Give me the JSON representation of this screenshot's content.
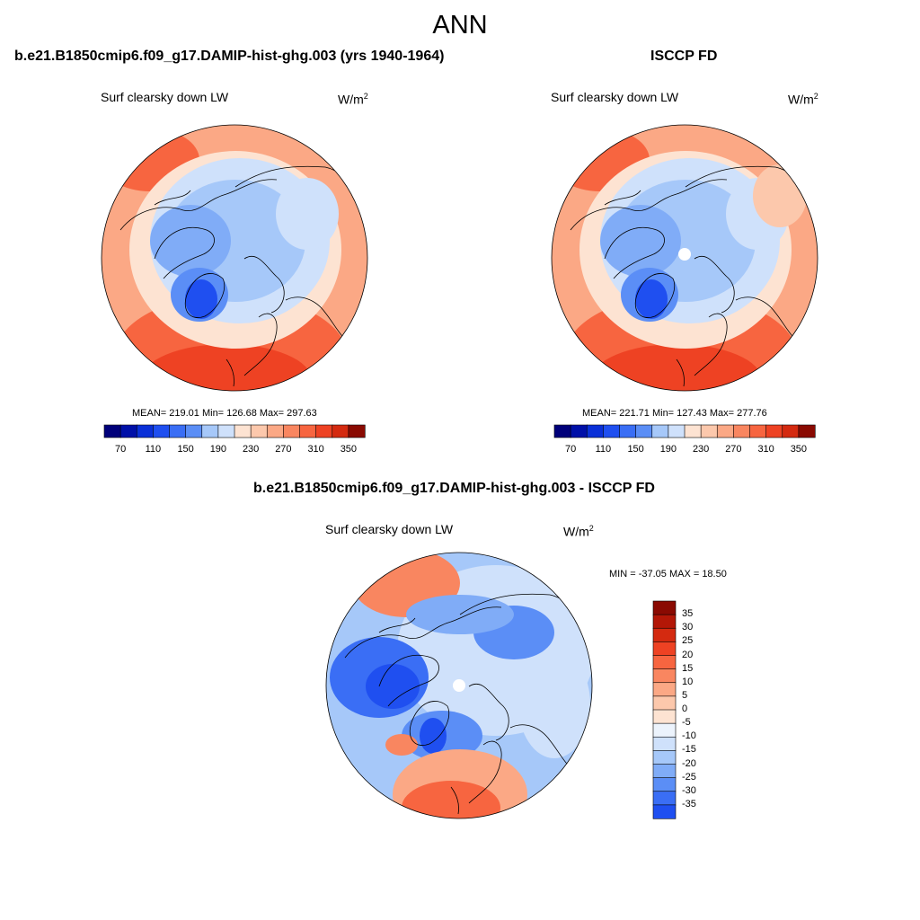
{
  "title": "ANN",
  "colors": {
    "blue_scale": [
      "#00007a",
      "#0010a8",
      "#0a30d8",
      "#1f4ff0",
      "#3a6ef5",
      "#5b8ef6",
      "#80acf7",
      "#a6c8f9",
      "#cfe1fb"
    ],
    "white": "#ecf3fc",
    "red_scale": [
      "#fde3d2",
      "#fcc8ac",
      "#fba885",
      "#f98660",
      "#f76540",
      "#ee4223",
      "#d42a10",
      "#b31707",
      "#8a0a02"
    ],
    "ocean": "#f2a98a",
    "land_outline": "#000000"
  },
  "panels": [
    {
      "title": "b.e21.B1850cmip6.f09_g17.DAMIP-hist-ghg.003 (yrs 1940-1964)",
      "variable": "Surf clearsky down LW",
      "units_base": "W/m",
      "units_exp": "2",
      "stats": "MEAN= 219.01  Min= 126.68  Max= 297.63",
      "colorbar_ticks": [
        "70",
        "110",
        "150",
        "190",
        "230",
        "270",
        "310",
        "350"
      ]
    },
    {
      "title": "ISCCP FD",
      "variable": "Surf clearsky down LW",
      "units_base": "W/m",
      "units_exp": "2",
      "stats": "MEAN= 221.71  Min= 127.43  Max= 277.76",
      "colorbar_ticks": [
        "70",
        "110",
        "150",
        "190",
        "230",
        "270",
        "310",
        "350"
      ]
    },
    {
      "title": "b.e21.B1850cmip6.f09_g17.DAMIP-hist-ghg.003 - ISCCP FD",
      "variable": "Surf clearsky down LW",
      "units_base": "W/m",
      "units_exp": "2",
      "stats": "MIN = -37.05 MAX =  18.50",
      "colorbar_ticks": [
        "35",
        "30",
        "25",
        "20",
        "15",
        "10",
        "5",
        "0",
        "-5",
        "-10",
        "-15",
        "-20",
        "-25",
        "-30",
        "-35"
      ]
    }
  ]
}
